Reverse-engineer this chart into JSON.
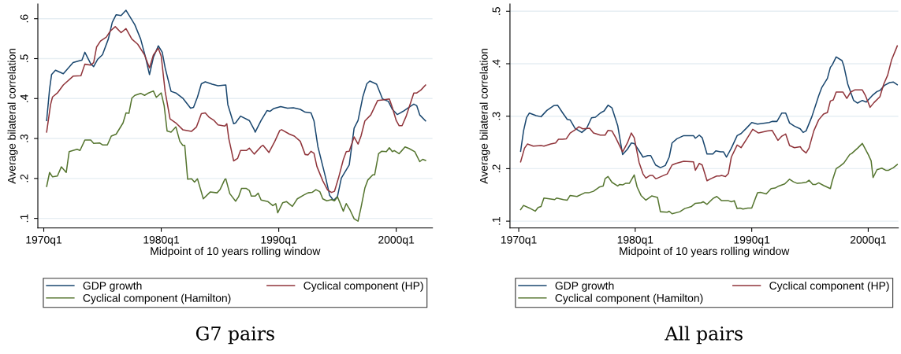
{
  "chart_data": [
    {
      "type": "line",
      "title": "G7 pairs",
      "xlabel": "Midpoint of 10 years rolling window",
      "ylabel": "Average bilateral correlation",
      "xlim": [
        "1969-07",
        "2003-02"
      ],
      "ylim": [
        0.076,
        0.637
      ],
      "xticks": [
        {
          "value": "1970-01",
          "label": "1970q1"
        },
        {
          "value": "1980-01",
          "label": "1980q1"
        },
        {
          "value": "1990-01",
          "label": "1990q1"
        },
        {
          "value": "2000-01",
          "label": "2000q1"
        }
      ],
      "yticks": [
        {
          "value": 0.1,
          "label": ".1"
        },
        {
          "value": 0.2,
          "label": ".2"
        },
        {
          "value": 0.3,
          "label": ".3"
        },
        {
          "value": 0.4,
          "label": ".4"
        },
        {
          "value": 0.5,
          "label": ".5"
        },
        {
          "value": 0.6,
          "label": ".6"
        }
      ],
      "grid": "y",
      "legend": "bottom",
      "marker": "none",
      "line_style": "solid",
      "series": [
        {
          "name": "GDP growth",
          "color": "#1a476f",
          "x": [
            "1970-04",
            "1970-07",
            "1970-09",
            "1971-01",
            "1971-09",
            "1972-07",
            "1973-02",
            "1973-04",
            "1973-07",
            "1974-01",
            "1974-04",
            "1974-08",
            "1975-01",
            "1975-07",
            "1975-11",
            "1976-03",
            "1976-08",
            "1977-01",
            "1977-05",
            "1977-10",
            "1978-04",
            "1978-09",
            "1979-01",
            "1979-05",
            "1979-10",
            "1980-02",
            "1980-05",
            "1980-11",
            "1981-04",
            "1981-11",
            "1982-07",
            "1982-10",
            "1983-02",
            "1983-06",
            "1983-10",
            "1984-05",
            "1984-11",
            "1985-07",
            "1985-09",
            "1986-03",
            "1986-05",
            "1986-10",
            "1987-07",
            "1987-12",
            "1988-01",
            "1988-07",
            "1989-01",
            "1989-04",
            "1989-08",
            "1990-03",
            "1990-10",
            "1991-04",
            "1991-11",
            "1992-04",
            "1992-10",
            "1993-01",
            "1993-05",
            "1994-01",
            "1994-05",
            "1994-09",
            "1995-01",
            "1995-05",
            "1996-01",
            "1996-06",
            "1996-10",
            "1997-03",
            "1997-07",
            "1997-10",
            "1998-05",
            "1998-11",
            "1999-05",
            "1999-09",
            "2000-02",
            "2000-08",
            "2001-02",
            "2001-07",
            "2001-10",
            "2002-01",
            "2002-07"
          ],
          "values": [
            0.345,
            0.424,
            0.46,
            0.471,
            0.462,
            0.49,
            0.495,
            0.496,
            0.516,
            0.487,
            0.48,
            0.498,
            0.51,
            0.549,
            0.591,
            0.61,
            0.608,
            0.621,
            0.605,
            0.585,
            0.549,
            0.503,
            0.46,
            0.503,
            0.532,
            0.516,
            0.477,
            0.418,
            0.414,
            0.401,
            0.376,
            0.378,
            0.404,
            0.437,
            0.442,
            0.436,
            0.432,
            0.434,
            0.385,
            0.337,
            0.339,
            0.356,
            0.345,
            0.322,
            0.316,
            0.345,
            0.37,
            0.368,
            0.375,
            0.38,
            0.376,
            0.377,
            0.373,
            0.366,
            0.364,
            0.344,
            0.28,
            0.201,
            0.158,
            0.145,
            0.155,
            0.201,
            0.234,
            0.326,
            0.345,
            0.405,
            0.437,
            0.444,
            0.436,
            0.399,
            0.393,
            0.373,
            0.36,
            0.368,
            0.378,
            0.386,
            0.382,
            0.359,
            0.344
          ]
        },
        {
          "name": "Cyclical component (HP)",
          "color": "#90353b",
          "x": [
            "1970-04",
            "1970-08",
            "1970-10",
            "1971-03",
            "1971-09",
            "1972-07",
            "1973-03",
            "1973-07",
            "1974-01",
            "1974-04",
            "1974-07",
            "1974-11",
            "1975-05",
            "1975-09",
            "1976-02",
            "1976-08",
            "1977-01",
            "1977-07",
            "1978-01",
            "1978-08",
            "1979-01",
            "1979-05",
            "1979-10",
            "1980-01",
            "1980-05",
            "1980-10",
            "1981-04",
            "1981-11",
            "1982-08",
            "1983-01",
            "1983-06",
            "1983-10",
            "1984-02",
            "1984-07",
            "1984-11",
            "1985-06",
            "1985-08",
            "1985-10",
            "1986-03",
            "1986-07",
            "1986-10",
            "1987-04",
            "1987-07",
            "1987-12",
            "1988-07",
            "1988-09",
            "1989-03",
            "1989-09",
            "1990-02",
            "1990-04",
            "1990-12",
            "1991-05",
            "1991-11",
            "1992-04",
            "1992-07",
            "1992-10",
            "1993-01",
            "1993-04",
            "1993-10",
            "1994-03",
            "1994-07",
            "1994-10",
            "1995-02",
            "1995-07",
            "1995-10",
            "1996-01",
            "1996-06",
            "1996-10",
            "1997-01",
            "1997-05",
            "1997-11",
            "1998-06",
            "1999-01",
            "1999-06",
            "1999-09",
            "2000-01",
            "2000-04",
            "2000-07",
            "2000-11",
            "2001-07",
            "2001-10",
            "2002-02",
            "2002-07"
          ],
          "values": [
            0.316,
            0.385,
            0.404,
            0.414,
            0.434,
            0.456,
            0.457,
            0.486,
            0.484,
            0.49,
            0.529,
            0.544,
            0.554,
            0.569,
            0.58,
            0.565,
            0.575,
            0.549,
            0.536,
            0.509,
            0.477,
            0.509,
            0.526,
            0.506,
            0.418,
            0.349,
            0.339,
            0.322,
            0.318,
            0.329,
            0.362,
            0.364,
            0.353,
            0.345,
            0.334,
            0.331,
            0.337,
            0.3,
            0.244,
            0.25,
            0.27,
            0.27,
            0.276,
            0.261,
            0.28,
            0.283,
            0.265,
            0.293,
            0.32,
            0.322,
            0.311,
            0.306,
            0.293,
            0.26,
            0.259,
            0.268,
            0.263,
            0.23,
            0.194,
            0.171,
            0.165,
            0.168,
            0.201,
            0.247,
            0.267,
            0.268,
            0.304,
            0.286,
            0.306,
            0.344,
            0.359,
            0.395,
            0.397,
            0.399,
            0.378,
            0.345,
            0.332,
            0.332,
            0.355,
            0.414,
            0.414,
            0.421,
            0.434
          ]
        },
        {
          "name": "Cyclical component (Hamilton)",
          "color": "#55752f",
          "x": [
            "1970-04",
            "1970-07",
            "1970-10",
            "1971-03",
            "1971-07",
            "1971-12",
            "1972-03",
            "1972-11",
            "1973-02",
            "1973-07",
            "1974-01",
            "1974-04",
            "1974-10",
            "1975-01",
            "1975-06",
            "1975-10",
            "1976-03",
            "1976-10",
            "1977-01",
            "1977-04",
            "1977-07",
            "1977-10",
            "1978-04",
            "1978-08",
            "1978-12",
            "1979-05",
            "1979-08",
            "1980-01",
            "1980-04",
            "1980-07",
            "1980-11",
            "1981-04",
            "1981-08",
            "1981-11",
            "1982-01",
            "1982-04",
            "1982-08",
            "1982-11",
            "1983-02",
            "1983-08",
            "1984-03",
            "1984-10",
            "1985-01",
            "1985-06",
            "1985-07",
            "1985-11",
            "1986-05",
            "1986-08",
            "1986-11",
            "1987-04",
            "1987-07",
            "1987-09",
            "1988-01",
            "1988-04",
            "1988-07",
            "1989-02",
            "1989-07",
            "1989-10",
            "1989-12",
            "1990-05",
            "1990-09",
            "1991-03",
            "1991-08",
            "1992-03",
            "1992-07",
            "1992-11",
            "1993-03",
            "1993-07",
            "1993-10",
            "1994-02",
            "1994-07",
            "1994-10",
            "1995-01",
            "1995-07",
            "1995-10",
            "1996-02",
            "1996-06",
            "1996-10",
            "1997-01",
            "1997-05",
            "1997-08",
            "1998-01",
            "1998-03",
            "1998-07",
            "1998-10",
            "1999-03",
            "1999-06",
            "1999-09",
            "1999-11",
            "2000-04",
            "2000-10",
            "2001-02",
            "2001-08",
            "2002-01",
            "2002-04",
            "2002-07"
          ],
          "values": [
            0.18,
            0.215,
            0.204,
            0.206,
            0.229,
            0.215,
            0.267,
            0.273,
            0.27,
            0.296,
            0.296,
            0.288,
            0.289,
            0.284,
            0.284,
            0.306,
            0.311,
            0.339,
            0.364,
            0.363,
            0.401,
            0.408,
            0.413,
            0.408,
            0.414,
            0.419,
            0.403,
            0.414,
            0.382,
            0.319,
            0.316,
            0.329,
            0.293,
            0.283,
            0.283,
            0.198,
            0.199,
            0.191,
            0.199,
            0.149,
            0.166,
            0.164,
            0.172,
            0.198,
            0.199,
            0.162,
            0.143,
            0.154,
            0.175,
            0.175,
            0.17,
            0.156,
            0.156,
            0.163,
            0.146,
            0.142,
            0.132,
            0.137,
            0.114,
            0.139,
            0.142,
            0.13,
            0.149,
            0.159,
            0.164,
            0.165,
            0.172,
            0.167,
            0.149,
            0.144,
            0.147,
            0.144,
            0.154,
            0.118,
            0.137,
            0.12,
            0.099,
            0.093,
            0.127,
            0.176,
            0.196,
            0.209,
            0.209,
            0.262,
            0.268,
            0.267,
            0.277,
            0.267,
            0.27,
            0.262,
            0.279,
            0.275,
            0.267,
            0.242,
            0.248,
            0.245
          ]
        }
      ]
    },
    {
      "type": "line",
      "title": "All pairs",
      "xlabel": "Midpoint of 10 years rolling window",
      "ylabel": "Average bilateral correlation",
      "xlim": [
        "1969-04",
        "2002-08"
      ],
      "ylim": [
        0.087,
        0.514
      ],
      "xticks": [
        {
          "value": "1970-01",
          "label": "1970q1"
        },
        {
          "value": "1980-01",
          "label": "1980q1"
        },
        {
          "value": "1990-01",
          "label": "1990q1"
        },
        {
          "value": "2000-01",
          "label": "2000q1"
        }
      ],
      "yticks": [
        {
          "value": 0.1,
          "label": ".1"
        },
        {
          "value": 0.2,
          "label": ".2"
        },
        {
          "value": 0.3,
          "label": ".3"
        },
        {
          "value": 0.4,
          "label": ".4"
        },
        {
          "value": 0.5,
          "label": ".5"
        }
      ],
      "grid": "y",
      "legend": "bottom",
      "marker": "none",
      "line_style": "solid",
      "series": [
        {
          "name": "GDP growth",
          "color": "#1a476f",
          "x": [
            "1970-03",
            "1970-06",
            "1970-09",
            "1970-12",
            "1971-07",
            "1971-12",
            "1972-06",
            "1973-01",
            "1973-05",
            "1973-10",
            "1974-03",
            "1974-06",
            "1974-11",
            "1975-06",
            "1975-11",
            "1976-04",
            "1976-08",
            "1977-01",
            "1977-05",
            "1977-09",
            "1978-01",
            "1978-07",
            "1978-12",
            "1979-05",
            "1979-09",
            "1979-12",
            "1980-04",
            "1980-09",
            "1981-02",
            "1981-05",
            "1981-10",
            "1982-03",
            "1982-08",
            "1982-12",
            "1983-03",
            "1983-08",
            "1984-03",
            "1985-01",
            "1985-03",
            "1985-07",
            "1985-10",
            "1986-03",
            "1986-09",
            "1986-12",
            "1987-05",
            "1987-08",
            "1987-11",
            "1988-04",
            "1988-10",
            "1989-02",
            "1989-08",
            "1990-01",
            "1990-07",
            "1991-07",
            "1991-10",
            "1992-03",
            "1992-08",
            "1992-12",
            "1993-04",
            "1993-09",
            "1994-03",
            "1994-06",
            "1994-09",
            "1995-03",
            "1995-10",
            "1996-01",
            "1996-07",
            "1996-10",
            "1996-12",
            "1997-04",
            "1997-10",
            "1997-12",
            "1998-04",
            "1998-10",
            "1999-02",
            "1999-07",
            "1999-11",
            "2000-05",
            "2000-10",
            "2001-01",
            "2001-06",
            "2001-11",
            "2002-03",
            "2002-07"
          ],
          "values": [
            0.233,
            0.272,
            0.297,
            0.306,
            0.301,
            0.299,
            0.311,
            0.32,
            0.321,
            0.307,
            0.294,
            0.293,
            0.277,
            0.269,
            0.277,
            0.297,
            0.298,
            0.306,
            0.31,
            0.321,
            0.316,
            0.282,
            0.227,
            0.237,
            0.249,
            0.248,
            0.237,
            0.222,
            0.225,
            0.225,
            0.207,
            0.202,
            0.206,
            0.222,
            0.249,
            0.257,
            0.263,
            0.263,
            0.258,
            0.264,
            0.259,
            0.228,
            0.228,
            0.234,
            0.232,
            0.232,
            0.222,
            0.239,
            0.263,
            0.267,
            0.278,
            0.288,
            0.285,
            0.288,
            0.29,
            0.29,
            0.306,
            0.306,
            0.287,
            0.281,
            0.276,
            0.269,
            0.272,
            0.299,
            0.339,
            0.354,
            0.372,
            0.393,
            0.398,
            0.413,
            0.406,
            0.395,
            0.361,
            0.33,
            0.325,
            0.33,
            0.327,
            0.339,
            0.347,
            0.349,
            0.359,
            0.364,
            0.365,
            0.36
          ]
        },
        {
          "name": "Cyclical component (HP)",
          "color": "#90353b",
          "x": [
            "1970-03",
            "1970-07",
            "1970-10",
            "1971-04",
            "1971-12",
            "1972-03",
            "1972-10",
            "1973-03",
            "1973-06",
            "1973-10",
            "1974-02",
            "1974-06",
            "1974-11",
            "1975-03",
            "1975-07",
            "1976-02",
            "1976-06",
            "1977-01",
            "1977-06",
            "1977-09",
            "1978-01",
            "1978-05",
            "1978-12",
            "1979-05",
            "1979-09",
            "1979-12",
            "1980-05",
            "1980-09",
            "1980-12",
            "1981-04",
            "1981-07",
            "1981-10",
            "1981-12",
            "1982-06",
            "1982-10",
            "1983-03",
            "1983-07",
            "1984-03",
            "1985-01",
            "1985-03",
            "1985-07",
            "1985-10",
            "1986-03",
            "1986-07",
            "1987-01",
            "1987-04",
            "1987-06",
            "1987-10",
            "1988-01",
            "1988-04",
            "1988-10",
            "1989-02",
            "1989-08",
            "1990-02",
            "1990-08",
            "1991-05",
            "1991-10",
            "1992-04",
            "1992-08",
            "1992-12",
            "1993-04",
            "1993-09",
            "1994-03",
            "1994-05",
            "1994-09",
            "1994-12",
            "1995-05",
            "1995-10",
            "1996-03",
            "1996-07",
            "1996-10",
            "1997-01",
            "1997-04",
            "1997-11",
            "1998-03",
            "1998-07",
            "1998-11",
            "1999-07",
            "1999-10",
            "2000-03",
            "2000-07",
            "2001-01",
            "2001-05",
            "2001-09",
            "2002-01",
            "2002-07"
          ],
          "values": [
            0.213,
            0.239,
            0.247,
            0.243,
            0.244,
            0.243,
            0.247,
            0.249,
            0.256,
            0.256,
            0.257,
            0.268,
            0.274,
            0.28,
            0.276,
            0.277,
            0.268,
            0.264,
            0.264,
            0.273,
            0.272,
            0.259,
            0.232,
            0.249,
            0.268,
            0.259,
            0.212,
            0.19,
            0.182,
            0.187,
            0.187,
            0.181,
            0.182,
            0.187,
            0.19,
            0.207,
            0.21,
            0.214,
            0.213,
            0.197,
            0.21,
            0.207,
            0.177,
            0.181,
            0.186,
            0.186,
            0.187,
            0.185,
            0.191,
            0.222,
            0.245,
            0.24,
            0.257,
            0.275,
            0.268,
            0.272,
            0.273,
            0.254,
            0.262,
            0.266,
            0.244,
            0.24,
            0.242,
            0.236,
            0.23,
            0.239,
            0.272,
            0.293,
            0.304,
            0.307,
            0.329,
            0.331,
            0.346,
            0.346,
            0.334,
            0.346,
            0.35,
            0.35,
            0.34,
            0.317,
            0.326,
            0.337,
            0.361,
            0.378,
            0.407,
            0.434
          ]
        },
        {
          "name": "Cyclical component (Hamilton)",
          "color": "#55752f",
          "x": [
            "1970-03",
            "1970-06",
            "1970-12",
            "1971-06",
            "1971-09",
            "1971-12",
            "1972-03",
            "1972-10",
            "1973-02",
            "1973-04",
            "1973-11",
            "1974-03",
            "1974-06",
            "1975-01",
            "1975-09",
            "1976-01",
            "1976-06",
            "1976-12",
            "1977-04",
            "1977-06",
            "1977-09",
            "1978-01",
            "1978-07",
            "1978-09",
            "1978-12",
            "1979-03",
            "1979-07",
            "1979-12",
            "1980-03",
            "1980-07",
            "1980-12",
            "1981-06",
            "1981-12",
            "1982-03",
            "1982-10",
            "1982-12",
            "1983-03",
            "1983-11",
            "1984-04",
            "1984-11",
            "1985-03",
            "1985-09",
            "1985-11",
            "1986-03",
            "1986-09",
            "1987-01",
            "1987-06",
            "1988-01",
            "1988-04",
            "1988-07",
            "1988-10",
            "1989-01",
            "1989-04",
            "1989-09",
            "1990-01",
            "1990-07",
            "1990-10",
            "1991-04",
            "1991-09",
            "1992-01",
            "1992-05",
            "1992-11",
            "1993-04",
            "1993-08",
            "1993-12",
            "1994-05",
            "1994-09",
            "1994-12",
            "1995-04",
            "1995-07",
            "1995-10",
            "1996-03",
            "1996-10",
            "1996-12",
            "1997-04",
            "1997-08",
            "1997-12",
            "1998-06",
            "1998-08",
            "1999-02",
            "1999-07",
            "2000-01",
            "2000-04",
            "2000-06",
            "2000-10",
            "2001-03",
            "2001-07",
            "2001-10",
            "2002-03",
            "2002-07"
          ],
          "values": [
            0.122,
            0.13,
            0.125,
            0.119,
            0.126,
            0.128,
            0.144,
            0.142,
            0.141,
            0.144,
            0.141,
            0.14,
            0.149,
            0.147,
            0.154,
            0.154,
            0.157,
            0.165,
            0.167,
            0.181,
            0.185,
            0.174,
            0.167,
            0.17,
            0.169,
            0.172,
            0.172,
            0.188,
            0.165,
            0.149,
            0.14,
            0.148,
            0.145,
            0.118,
            0.117,
            0.119,
            0.114,
            0.118,
            0.124,
            0.128,
            0.134,
            0.135,
            0.137,
            0.132,
            0.143,
            0.147,
            0.139,
            0.139,
            0.137,
            0.139,
            0.124,
            0.125,
            0.123,
            0.125,
            0.125,
            0.154,
            0.155,
            0.152,
            0.162,
            0.163,
            0.167,
            0.171,
            0.18,
            0.175,
            0.172,
            0.173,
            0.174,
            0.178,
            0.17,
            0.17,
            0.173,
            0.168,
            0.162,
            0.177,
            0.2,
            0.205,
            0.211,
            0.227,
            0.229,
            0.239,
            0.248,
            0.227,
            0.215,
            0.183,
            0.198,
            0.201,
            0.197,
            0.197,
            0.202,
            0.208
          ]
        }
      ]
    }
  ]
}
